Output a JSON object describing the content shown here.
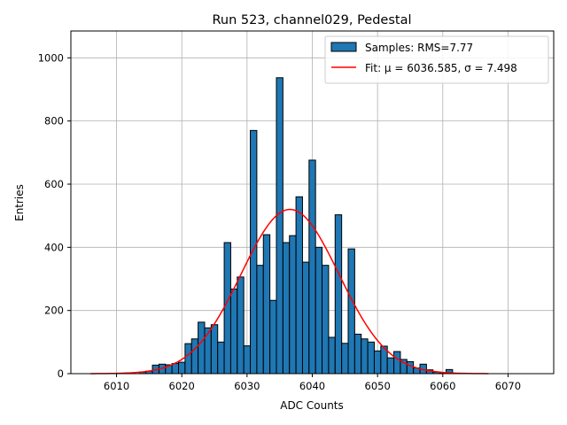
{
  "chart_data": {
    "type": "bar",
    "title": "Run 523, channel029, Pedestal",
    "xlabel": "ADC Counts",
    "ylabel": "Entries",
    "xlim": [
      6003,
      6077
    ],
    "ylim": [
      0,
      1085
    ],
    "xticks": [
      6010,
      6020,
      6030,
      6040,
      6050,
      6060,
      6070
    ],
    "yticks": [
      0,
      200,
      400,
      600,
      800,
      1000
    ],
    "grid": true,
    "legend_position": "top-right",
    "bar_color": "#1f77b4",
    "fit_color": "#ff0000",
    "legend": {
      "hist_label": "Samples: RMS=7.77",
      "fit_label": "Fit: μ = 6036.585, σ = 7.498"
    },
    "histogram": {
      "name": "Samples: RMS=7.77",
      "bin_width": 1,
      "x": [
        6014,
        6015,
        6016,
        6017,
        6018,
        6019,
        6020,
        6021,
        6022,
        6023,
        6024,
        6025,
        6026,
        6027,
        6028,
        6029,
        6030,
        6031,
        6032,
        6033,
        6034,
        6035,
        6036,
        6037,
        6038,
        6039,
        6040,
        6041,
        6042,
        6043,
        6044,
        6045,
        6046,
        6047,
        6048,
        6049,
        6050,
        6051,
        6052,
        6053,
        6054,
        6055,
        6056,
        6057,
        6058,
        6059,
        6060,
        6061
      ],
      "values": [
        5,
        8,
        27,
        30,
        28,
        32,
        36,
        95,
        110,
        163,
        145,
        155,
        100,
        415,
        268,
        306,
        88,
        770,
        343,
        440,
        232,
        937,
        415,
        437,
        560,
        353,
        676,
        400,
        343,
        115,
        503,
        96,
        395,
        125,
        110,
        100,
        72,
        87,
        50,
        70,
        45,
        38,
        18,
        30,
        12,
        5,
        3,
        13
      ]
    },
    "fit": {
      "name": "Fit: μ = 6036.585, σ = 7.498",
      "mu": 6036.585,
      "sigma": 7.498,
      "amplitude": 520,
      "x_range": [
        6006,
        6067
      ]
    }
  }
}
